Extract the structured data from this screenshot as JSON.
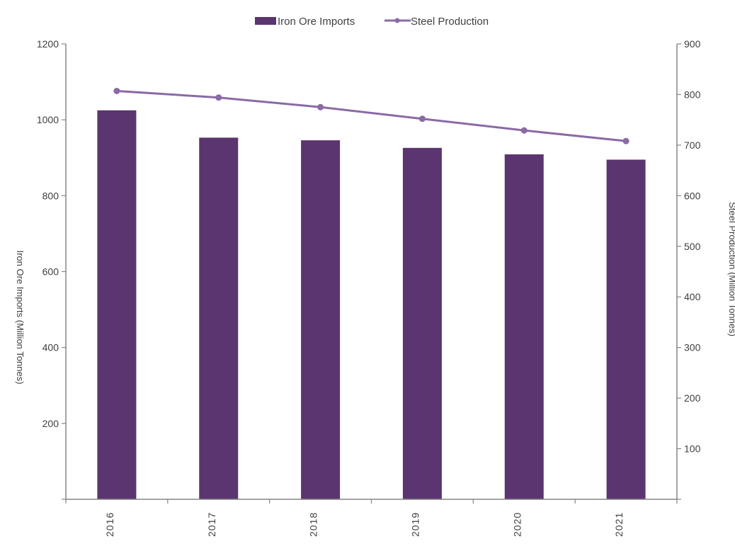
{
  "chart_data": {
    "type": "bar",
    "categories": [
      "2016",
      "2017",
      "2018",
      "2019",
      "2020",
      "2021"
    ],
    "series": [
      {
        "name": "Iron Ore Imports",
        "type": "bar",
        "axis": "left",
        "color": "#5b356f",
        "values": [
          1025,
          953,
          946,
          926,
          909,
          895
        ]
      },
      {
        "name": "Steel Production",
        "type": "line",
        "axis": "right",
        "color": "#8a6aa5",
        "values": [
          807,
          794,
          775,
          752,
          729,
          708
        ]
      }
    ],
    "y_left": {
      "label": "Iron Ore Imports (Million Tonnes)",
      "ylim": [
        0,
        1200
      ],
      "ticks": [
        200,
        400,
        600,
        800,
        1000,
        1200
      ]
    },
    "y_right": {
      "label": "Steel Production (Million Tonnes)",
      "ylim": [
        0,
        900
      ],
      "ticks": [
        100,
        200,
        300,
        400,
        500,
        600,
        700,
        800,
        900
      ]
    },
    "legend_position": "top-center",
    "grid": false
  }
}
